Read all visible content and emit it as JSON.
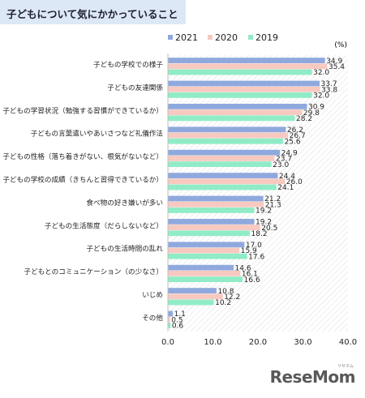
{
  "header": {
    "title": "子どもについて気にかかっていること"
  },
  "watermark": {
    "text": "ReseMom",
    "kana": "リセマム"
  },
  "colors": {
    "s2021": "#8fa9de",
    "s2020": "#f7c9c0",
    "s2019": "#90ecc6",
    "title_bg": "#dce8f6"
  },
  "chart_data": {
    "type": "bar",
    "orientation": "horizontal",
    "unit_label": "(%)",
    "categories": [
      "子どもの学校での様子",
      "子どもの友達関係",
      "子どもの学習状況（勉強する習慣ができているか）",
      "子どもの言葉遣いやあいさつなど礼儀作法",
      "子どもの性格（落ち着きがない、根気がないなど）",
      "子どもの学校の成績（きちんと習得できているか）",
      "食べ物の好き嫌いが多い",
      "子どもの生活態度（だらしないなど）",
      "子どもの生活時間の乱れ",
      "子どもとのコミュニケーション（の少なさ）",
      "いじめ",
      "その他"
    ],
    "series": [
      {
        "name": "2021",
        "color": "#8fa9de",
        "values": [
          34.9,
          33.7,
          30.9,
          26.2,
          24.9,
          24.4,
          21.2,
          19.2,
          17.0,
          14.6,
          10.8,
          1.1
        ]
      },
      {
        "name": "2020",
        "color": "#f7c9c0",
        "values": [
          35.4,
          33.8,
          29.8,
          26.7,
          23.7,
          26.0,
          21.3,
          20.5,
          15.9,
          16.1,
          12.2,
          0.5
        ]
      },
      {
        "name": "2019",
        "color": "#90ecc6",
        "values": [
          32.0,
          32.0,
          28.2,
          25.6,
          23.0,
          24.1,
          19.2,
          18.2,
          17.6,
          16.6,
          10.2,
          0.6
        ]
      }
    ],
    "xlim": [
      0,
      40
    ],
    "ticks": [
      "0.0",
      "10.0",
      "20.0",
      "30.0",
      "40.0"
    ],
    "legend_position": "top",
    "grid": false
  }
}
